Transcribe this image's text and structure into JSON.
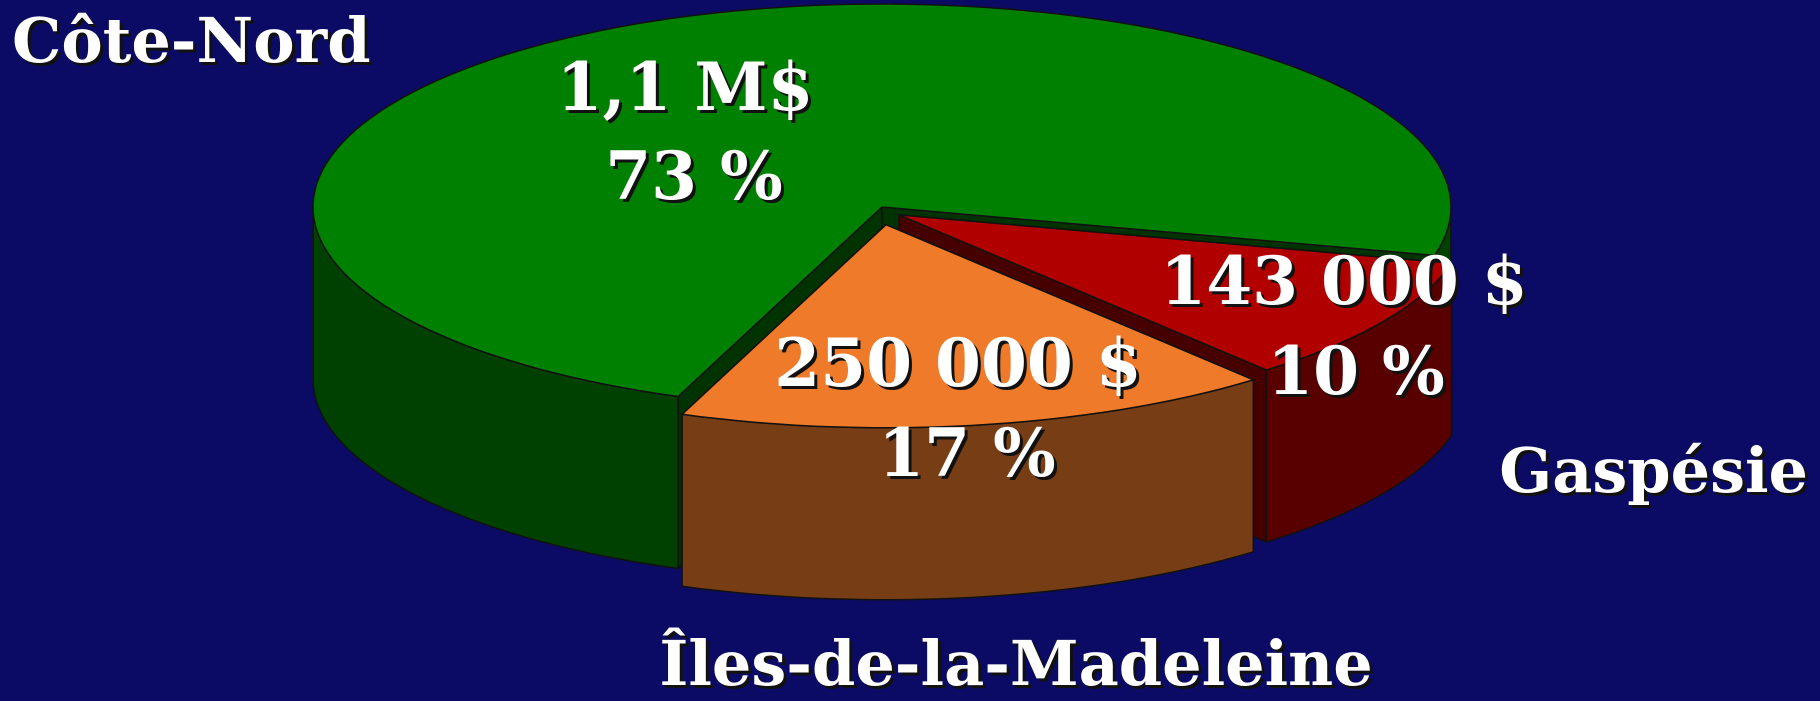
{
  "chart_data": {
    "type": "pie3d",
    "categories": [
      "Côte-Nord",
      "Gaspésie",
      "Îles-de-la-Madeleine"
    ],
    "values": [
      73,
      10,
      17
    ],
    "value_labels": [
      "73 %",
      "10 %",
      "17 %"
    ],
    "amount_labels": [
      "1,1 M$",
      "143 000 $",
      "250 000 $"
    ],
    "colors": [
      "#008000",
      "#b00000",
      "#ee7a2a"
    ]
  }
}
